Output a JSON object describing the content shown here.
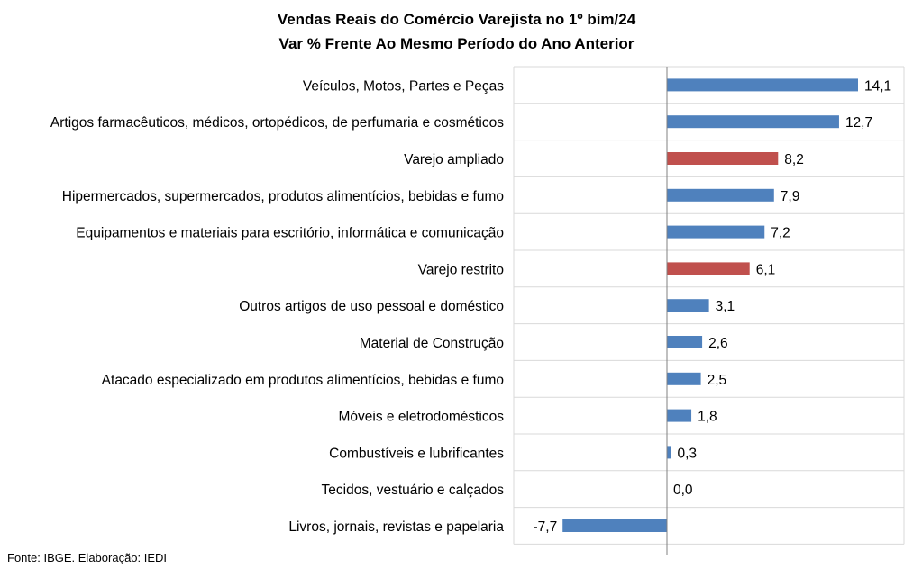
{
  "chart_data": {
    "type": "bar",
    "orientation": "horizontal",
    "title": "Vendas Reais do Comércio Varejista no 1º bim/24",
    "subtitle": "Var % Frente Ao Mesmo Período do Ano Anterior",
    "categories": [
      "Veículos, Motos, Partes e Peças",
      "Artigos farmacêuticos, médicos, ortopédicos, de perfumaria e cosméticos",
      "Varejo ampliado",
      "Hipermercados, supermercados, produtos alimentícios, bebidas e fumo",
      "Equipamentos e materiais para escritório, informática e comunicação",
      "Varejo restrito",
      "Outros artigos de uso pessoal e doméstico",
      "Material de Construção",
      "Atacado especializado em produtos alimentícios, bebidas e fumo",
      "Móveis e eletrodomésticos",
      "Combustíveis e lubrificantes",
      "Tecidos, vestuário e calçados",
      "Livros, jornais, revistas e papelaria"
    ],
    "values": [
      14.1,
      12.7,
      8.2,
      7.9,
      7.2,
      6.1,
      3.1,
      2.6,
      2.5,
      1.8,
      0.3,
      0.0,
      -7.7
    ],
    "value_labels": [
      "14,1",
      "12,7",
      "8,2",
      "7,9",
      "7,2",
      "6,1",
      "3,1",
      "2,6",
      "2,5",
      "1,8",
      "0,3",
      "0,0",
      "-7,7"
    ],
    "highlighted": [
      false,
      false,
      true,
      false,
      false,
      true,
      false,
      false,
      false,
      false,
      false,
      false,
      false
    ],
    "colors": {
      "default": "#4f81bd",
      "highlight": "#c0504d",
      "grid": "#d9d9d9",
      "axis": "#808080"
    },
    "xlim": [
      -7.7,
      14.1
    ],
    "grid": true,
    "legend": "none",
    "xlabel": "",
    "ylabel": ""
  },
  "footer": {
    "source": "Fonte: IBGE. Elaboração: IEDI"
  }
}
